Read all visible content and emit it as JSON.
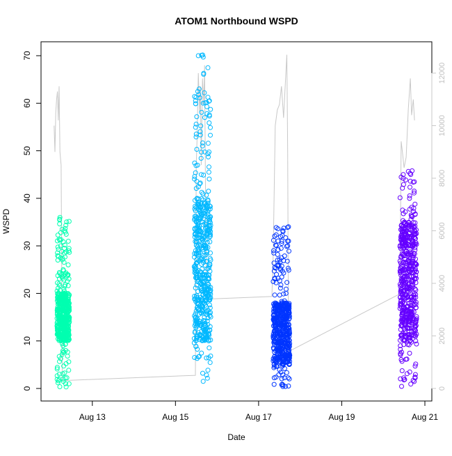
{
  "chart_data": {
    "type": "scatter",
    "title": "ATOM1 Northbound WSPD",
    "xlabel": "Date",
    "ylabel": "WSPD",
    "x_unit": "day of August",
    "xlim": [
      12.0,
      21.0
    ],
    "ylim": [
      0,
      70
    ],
    "xticks": [
      {
        "value": 13,
        "label": "Aug 13"
      },
      {
        "value": 15,
        "label": "Aug 15"
      },
      {
        "value": 17,
        "label": "Aug 17"
      },
      {
        "value": 19,
        "label": "Aug 19"
      },
      {
        "value": 21,
        "label": "Aug 21"
      }
    ],
    "yticks": [
      0,
      10,
      20,
      30,
      40,
      50,
      60,
      70
    ],
    "y2lim": [
      0,
      12700
    ],
    "y2ticks": [
      0,
      2000,
      4000,
      6000,
      8000,
      10000,
      12000
    ],
    "grid": false,
    "legend": "none",
    "marker": "open-circle",
    "series": [
      {
        "color": "#00FFB0",
        "x_range": [
          12.15,
          12.45
        ],
        "y_range": [
          0.3,
          36.6
        ],
        "typical_y": [
          10,
          20
        ],
        "samples": [
          {
            "x": 12.18,
            "y": 15
          },
          {
            "x": 12.2,
            "y": 22
          },
          {
            "x": 12.22,
            "y": 36
          },
          {
            "x": 12.24,
            "y": 30
          },
          {
            "x": 12.26,
            "y": 18
          },
          {
            "x": 12.28,
            "y": 12
          },
          {
            "x": 12.3,
            "y": 25
          },
          {
            "x": 12.33,
            "y": 20
          },
          {
            "x": 12.36,
            "y": 8
          },
          {
            "x": 12.4,
            "y": 24
          },
          {
            "x": 12.42,
            "y": 26
          },
          {
            "x": 12.44,
            "y": 1
          }
        ]
      },
      {
        "color": "#00B8FF",
        "x_range": [
          15.45,
          15.85
        ],
        "y_range": [
          0.3,
          70.3
        ],
        "typical_y": [
          10,
          40
        ],
        "samples": [
          {
            "x": 15.48,
            "y": 15
          },
          {
            "x": 15.5,
            "y": 24
          },
          {
            "x": 15.52,
            "y": 40
          },
          {
            "x": 15.55,
            "y": 70
          },
          {
            "x": 15.57,
            "y": 63
          },
          {
            "x": 15.6,
            "y": 38
          },
          {
            "x": 15.62,
            "y": 45
          },
          {
            "x": 15.65,
            "y": 51
          },
          {
            "x": 15.68,
            "y": 30
          },
          {
            "x": 15.72,
            "y": 20
          },
          {
            "x": 15.76,
            "y": 16
          },
          {
            "x": 15.8,
            "y": 10
          }
        ]
      },
      {
        "color": "#0035FF",
        "x_range": [
          17.35,
          17.75
        ],
        "y_range": [
          0.3,
          34
        ],
        "typical_y": [
          5,
          18
        ],
        "samples": [
          {
            "x": 17.38,
            "y": 10
          },
          {
            "x": 17.4,
            "y": 18
          },
          {
            "x": 17.43,
            "y": 24
          },
          {
            "x": 17.46,
            "y": 15
          },
          {
            "x": 17.5,
            "y": 12
          },
          {
            "x": 17.54,
            "y": 8
          },
          {
            "x": 17.58,
            "y": 14
          },
          {
            "x": 17.62,
            "y": 16
          },
          {
            "x": 17.66,
            "y": 20
          },
          {
            "x": 17.7,
            "y": 30
          },
          {
            "x": 17.72,
            "y": 34
          },
          {
            "x": 17.74,
            "y": 2
          }
        ]
      },
      {
        "color": "#6500FF",
        "x_range": [
          20.4,
          20.8
        ],
        "y_range": [
          0.3,
          45.8
        ],
        "typical_y": [
          10,
          35
        ],
        "samples": [
          {
            "x": 20.42,
            "y": 20
          },
          {
            "x": 20.45,
            "y": 30
          },
          {
            "x": 20.48,
            "y": 45
          },
          {
            "x": 20.51,
            "y": 35
          },
          {
            "x": 20.54,
            "y": 25
          },
          {
            "x": 20.57,
            "y": 15
          },
          {
            "x": 20.6,
            "y": 22
          },
          {
            "x": 20.63,
            "y": 40
          },
          {
            "x": 20.66,
            "y": 45
          },
          {
            "x": 20.7,
            "y": 30
          },
          {
            "x": 20.74,
            "y": 20
          },
          {
            "x": 20.78,
            "y": 10
          }
        ]
      }
    ],
    "secondary_series": {
      "type": "line",
      "axis": "right",
      "color": "#C8C8C8",
      "points": [
        {
          "x": 12.08,
          "y": 10000
        },
        {
          "x": 12.1,
          "y": 9000
        },
        {
          "x": 12.12,
          "y": 10500
        },
        {
          "x": 12.14,
          "y": 11000
        },
        {
          "x": 12.16,
          "y": 11300
        },
        {
          "x": 12.18,
          "y": 10200
        },
        {
          "x": 12.2,
          "y": 11500
        },
        {
          "x": 12.22,
          "y": 9000
        },
        {
          "x": 12.25,
          "y": 8500
        },
        {
          "x": 12.28,
          "y": 300
        },
        {
          "x": 15.48,
          "y": 500
        },
        {
          "x": 15.5,
          "y": 8500
        },
        {
          "x": 15.52,
          "y": 9500
        },
        {
          "x": 15.55,
          "y": 12000
        },
        {
          "x": 15.58,
          "y": 10500
        },
        {
          "x": 15.6,
          "y": 11500
        },
        {
          "x": 15.62,
          "y": 8500
        },
        {
          "x": 15.65,
          "y": 11800
        },
        {
          "x": 15.68,
          "y": 10800
        },
        {
          "x": 15.7,
          "y": 12300
        },
        {
          "x": 15.72,
          "y": 8000
        },
        {
          "x": 15.75,
          "y": 3400
        },
        {
          "x": 17.32,
          "y": 3500
        },
        {
          "x": 17.35,
          "y": 5000
        },
        {
          "x": 17.4,
          "y": 10000
        },
        {
          "x": 17.45,
          "y": 10600
        },
        {
          "x": 17.5,
          "y": 10800
        },
        {
          "x": 17.55,
          "y": 11500
        },
        {
          "x": 17.6,
          "y": 10300
        },
        {
          "x": 17.65,
          "y": 11800
        },
        {
          "x": 17.68,
          "y": 12700
        },
        {
          "x": 17.7,
          "y": 9000
        },
        {
          "x": 17.72,
          "y": 1400
        },
        {
          "x": 20.4,
          "y": 3600
        },
        {
          "x": 20.43,
          "y": 9400
        },
        {
          "x": 20.46,
          "y": 9000
        },
        {
          "x": 20.5,
          "y": 8400
        },
        {
          "x": 20.55,
          "y": 8800
        },
        {
          "x": 20.6,
          "y": 10600
        },
        {
          "x": 20.65,
          "y": 11800
        },
        {
          "x": 20.68,
          "y": 10400
        },
        {
          "x": 20.72,
          "y": 11000
        },
        {
          "x": 20.75,
          "y": 10200
        }
      ]
    }
  }
}
